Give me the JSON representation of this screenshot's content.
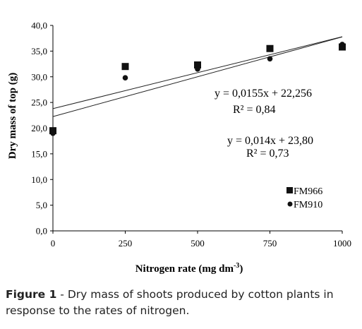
{
  "chart_data": {
    "type": "scatter",
    "xlabel": "Nitrogen rate (mg dm",
    "xlabel_sup": "-3",
    "xlabel_end": ")",
    "ylabel": "Dry mass of top (g)",
    "xlim": [
      0,
      1000
    ],
    "ylim": [
      0,
      40
    ],
    "x_ticks": [
      "0",
      "250",
      "500",
      "750",
      "1000"
    ],
    "y_ticks": [
      "0,0",
      "5,0",
      "10,0",
      "15,0",
      "20,0",
      "25,0",
      "30,0",
      "35,0",
      "40,0"
    ],
    "x": [
      0,
      250,
      500,
      750,
      1000
    ],
    "series": [
      {
        "name": "FM966",
        "marker": "square",
        "values": [
          19.5,
          32.0,
          32.3,
          35.5,
          35.8
        ]
      },
      {
        "name": "FM910",
        "marker": "circle",
        "values": [
          19.0,
          29.8,
          31.5,
          33.5,
          36.3
        ]
      }
    ],
    "trendlines": [
      {
        "slope": 0.0155,
        "intercept": 22.256,
        "equation": "y = 0,0155x + 22,256",
        "r2": "R² = 0,84"
      },
      {
        "slope": 0.014,
        "intercept": 23.8,
        "equation": "y = 0,014x + 23,80",
        "r2": "R² = 0,73"
      }
    ],
    "legend_position": "bottom-right",
    "grid": false
  },
  "caption": {
    "label": "Figure 1",
    "text": " - Dry mass of shoots produced by cotton plants in response to the rates of nitrogen."
  },
  "colors": {
    "marker": "#111111",
    "line": "#222222",
    "caption_text": "#222222"
  }
}
